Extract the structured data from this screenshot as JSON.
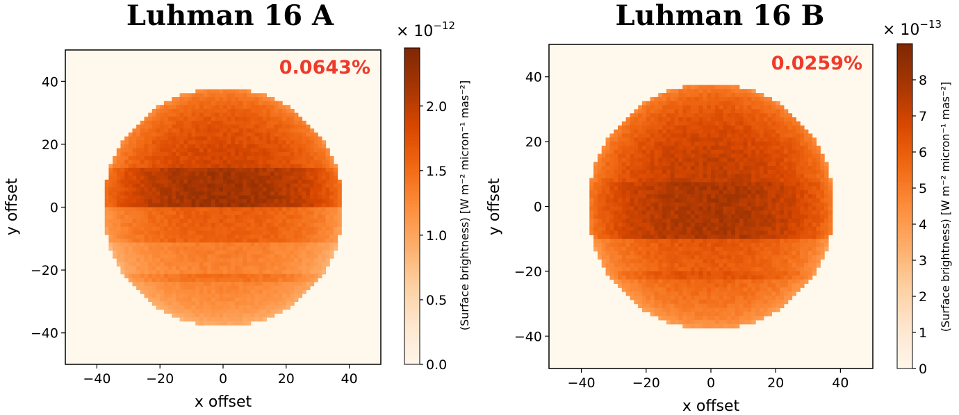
{
  "colors": {
    "background": "#fff8ec",
    "colormap": [
      "#fff5eb",
      "#fee6ce",
      "#fdd0a2",
      "#fdae6b",
      "#fd8d3c",
      "#f16913",
      "#d94801",
      "#a63603",
      "#7f2704"
    ],
    "percent_text": "#ee3a2a"
  },
  "chart_data": [
    {
      "type": "heatmap",
      "title": "Luhman 16 A",
      "xlabel": "x offset",
      "ylabel": "y offset",
      "xlim": [
        -50,
        50
      ],
      "ylim": [
        -50,
        50
      ],
      "xticks": [
        -40,
        -20,
        0,
        20,
        40
      ],
      "yticks": [
        -40,
        -20,
        0,
        20,
        40
      ],
      "xtick_labels": [
        "−40",
        "−20",
        "0",
        "20",
        "40"
      ],
      "ytick_labels": [
        "−40",
        "−20",
        "0",
        "20",
        "40"
      ],
      "disk_radius": 38,
      "annotation": "0.0643%",
      "colorbar": {
        "label": "(Surface brightness) [W m⁻² micron⁻¹ mas⁻²]",
        "multiplier_base": "× 10",
        "multiplier_exp": "−12",
        "range": [
          0,
          2.45
        ],
        "ticks": [
          0.0,
          0.5,
          1.0,
          1.5,
          2.0
        ],
        "tick_labels": [
          "0.0",
          "0.5",
          "1.0",
          "1.5",
          "2.0"
        ]
      },
      "bands": [
        {
          "y_from": 38,
          "y_to": 12,
          "value": 1.95
        },
        {
          "y_from": 12,
          "y_to": 0,
          "value": 2.2
        },
        {
          "y_from": 0,
          "y_to": -11,
          "value": 1.65
        },
        {
          "y_from": -11,
          "y_to": -21,
          "value": 1.4
        },
        {
          "y_from": -21,
          "y_to": -24,
          "value": 1.6
        },
        {
          "y_from": -24,
          "y_to": -38,
          "value": 1.45
        }
      ]
    },
    {
      "type": "heatmap",
      "title": "Luhman 16 B",
      "xlabel": "x offset",
      "ylabel": "y offset",
      "xlim": [
        -50,
        50
      ],
      "ylim": [
        -50,
        50
      ],
      "xticks": [
        -40,
        -20,
        0,
        20,
        40
      ],
      "yticks": [
        -40,
        -20,
        0,
        20,
        40
      ],
      "xtick_labels": [
        "−40",
        "−20",
        "0",
        "20",
        "40"
      ],
      "ytick_labels": [
        "−40",
        "−20",
        "0",
        "20",
        "40"
      ],
      "disk_radius": 38,
      "annotation": "0.0259%",
      "colorbar": {
        "label": "(Surface brightness) [W m⁻² micron⁻¹ mas⁻²]",
        "multiplier_base": "× 10",
        "multiplier_exp": "−13",
        "range": [
          0,
          9
        ],
        "ticks": [
          0,
          1,
          2,
          3,
          4,
          5,
          6,
          7,
          8
        ],
        "tick_labels": [
          "0",
          "1",
          "2",
          "3",
          "4",
          "5",
          "6",
          "7",
          "8"
        ]
      },
      "bands": [
        {
          "y_from": 38,
          "y_to": 8,
          "value": 7.4
        },
        {
          "y_from": 8,
          "y_to": -10,
          "value": 7.8
        },
        {
          "y_from": -10,
          "y_to": -20,
          "value": 6.4
        },
        {
          "y_from": -20,
          "y_to": -23,
          "value": 6.9
        },
        {
          "y_from": -23,
          "y_to": -38,
          "value": 6.3
        }
      ]
    }
  ]
}
